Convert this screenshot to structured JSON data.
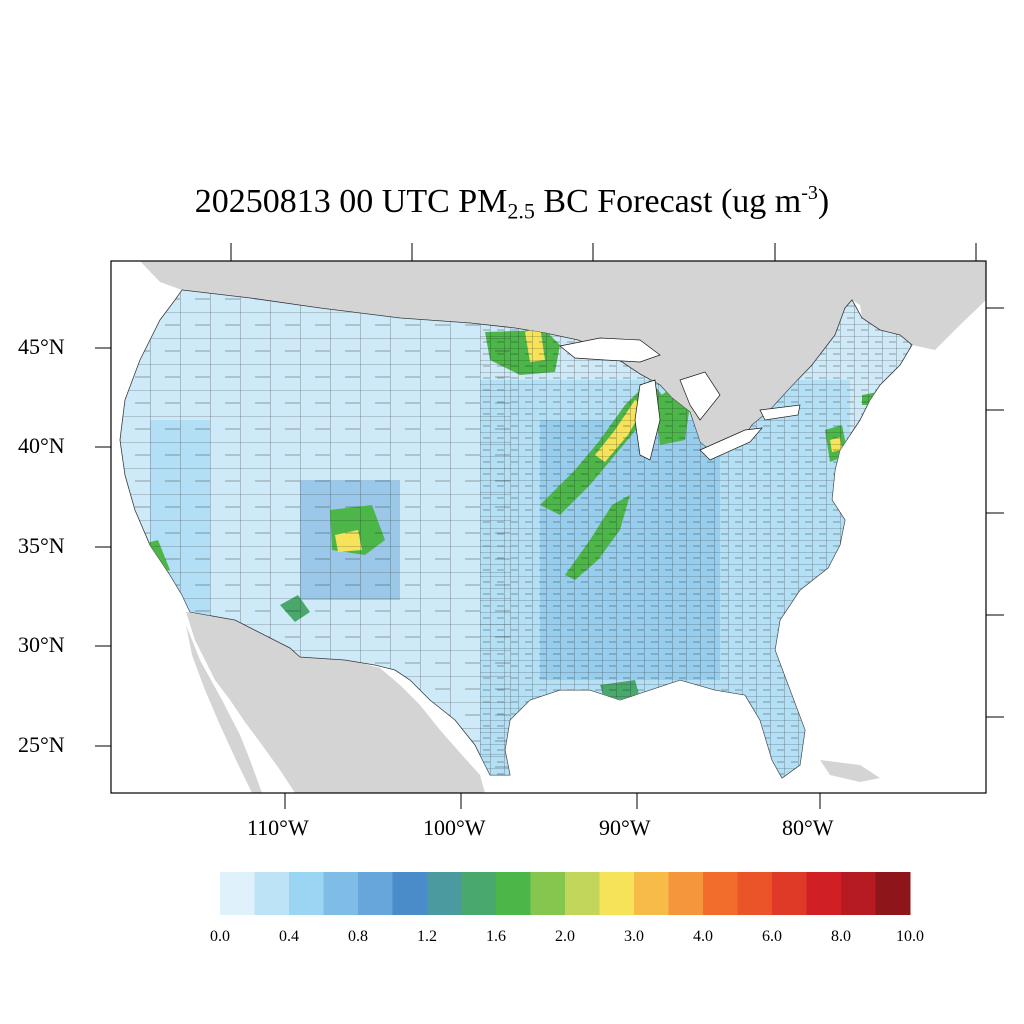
{
  "title": {
    "date_time": "20250813 00 UTC PM",
    "sub": "2.5",
    "mid": " BC Forecast (ug m",
    "sup": "-3",
    "end": ")"
  },
  "axes": {
    "lat_labels": [
      "45°N",
      "40°N",
      "35°N",
      "30°N",
      "25°N"
    ],
    "lon_labels": [
      "110°W",
      "100°W",
      "90°W",
      "80°W"
    ]
  },
  "colorbar": {
    "labels": [
      "0.0",
      "0.4",
      "0.8",
      "1.2",
      "1.6",
      "2.0",
      "3.0",
      "4.0",
      "6.0",
      "8.0",
      "10.0"
    ],
    "colors": [
      "#dff1fb",
      "#bde3f6",
      "#9ad6f3",
      "#7fbde6",
      "#67a6da",
      "#4a8bc9",
      "#4b9aa0",
      "#49a86b",
      "#4cb748",
      "#85c64f",
      "#c1d65a",
      "#f6e35a",
      "#f7bb48",
      "#f5963c",
      "#f26d2b",
      "#ea5428",
      "#df3a27",
      "#d11f26",
      "#b51b20",
      "#8e1519"
    ]
  },
  "map": {
    "ocean_color": "#ffffff",
    "land_outside_color": "#d4d4d4",
    "county_line_color": "#1a1a1a",
    "hotspots": [
      {
        "name": "northern Minnesota plume",
        "level": 12
      },
      {
        "name": "central Illinois–Wisconsin plume",
        "level": 11
      },
      {
        "name": "Missouri–Arkansas plume",
        "level": 9
      },
      {
        "name": "northern New Mexico fire",
        "level": 12
      },
      {
        "name": "southern California",
        "level": 8
      },
      {
        "name": "southeastern Arizona",
        "level": 7
      },
      {
        "name": "New Jersey / New York",
        "level": 12
      },
      {
        "name": "Massachusetts",
        "level": 8
      },
      {
        "name": "Louisiana coast",
        "level": 7
      }
    ]
  }
}
